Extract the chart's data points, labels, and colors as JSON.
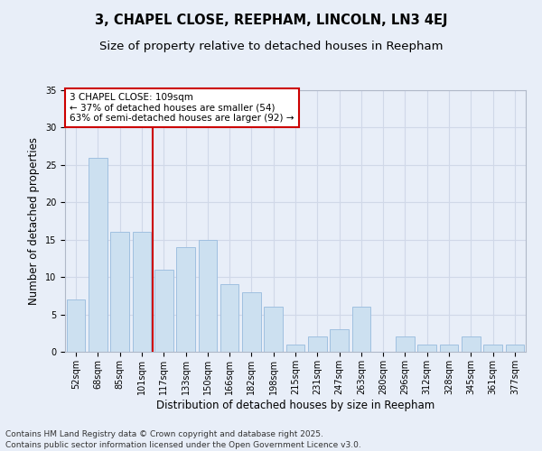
{
  "title": "3, CHAPEL CLOSE, REEPHAM, LINCOLN, LN3 4EJ",
  "subtitle": "Size of property relative to detached houses in Reepham",
  "xlabel": "Distribution of detached houses by size in Reepham",
  "ylabel": "Number of detached properties",
  "categories": [
    "52sqm",
    "68sqm",
    "85sqm",
    "101sqm",
    "117sqm",
    "133sqm",
    "150sqm",
    "166sqm",
    "182sqm",
    "198sqm",
    "215sqm",
    "231sqm",
    "247sqm",
    "263sqm",
    "280sqm",
    "296sqm",
    "312sqm",
    "328sqm",
    "345sqm",
    "361sqm",
    "377sqm"
  ],
  "values": [
    7,
    26,
    16,
    16,
    11,
    14,
    15,
    9,
    8,
    6,
    1,
    2,
    3,
    6,
    0,
    2,
    1,
    1,
    2,
    1,
    1
  ],
  "bar_color": "#cce0f0",
  "bar_edgecolor": "#a0c0e0",
  "vline_x": 3.5,
  "vline_color": "#cc0000",
  "annotation_text": "3 CHAPEL CLOSE: 109sqm\n← 37% of detached houses are smaller (54)\n63% of semi-detached houses are larger (92) →",
  "annotation_box_edgecolor": "#cc0000",
  "annotation_box_facecolor": "#ffffff",
  "ylim": [
    0,
    35
  ],
  "yticks": [
    0,
    5,
    10,
    15,
    20,
    25,
    30,
    35
  ],
  "grid_color": "#d0d8e8",
  "background_color": "#e8eef8",
  "footer": "Contains HM Land Registry data © Crown copyright and database right 2025.\nContains public sector information licensed under the Open Government Licence v3.0.",
  "title_fontsize": 10.5,
  "subtitle_fontsize": 9.5,
  "axis_label_fontsize": 8.5,
  "tick_fontsize": 7,
  "footer_fontsize": 6.5,
  "annotation_fontsize": 7.5
}
